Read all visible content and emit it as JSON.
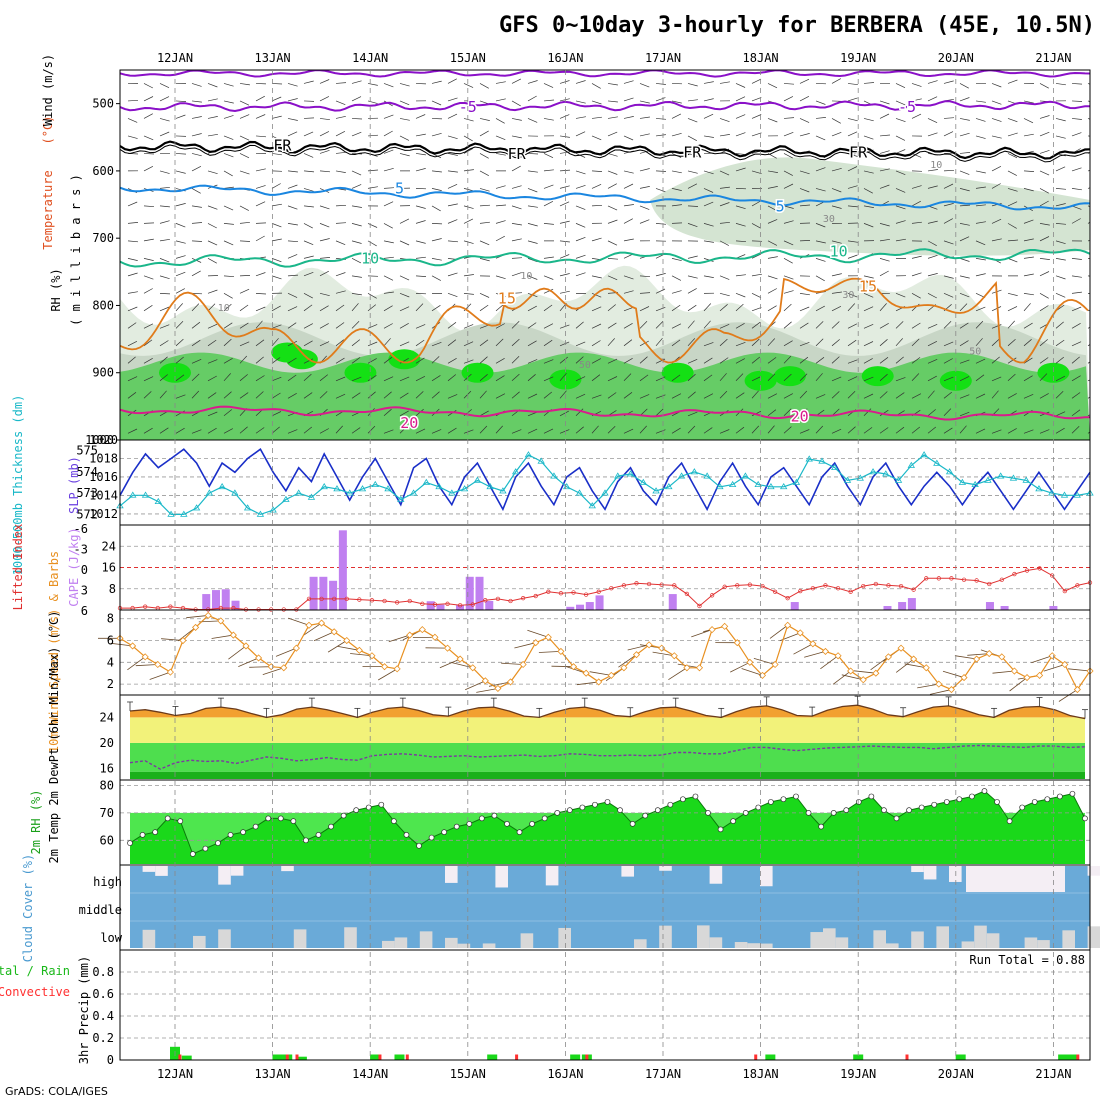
{
  "title": "GFS 0~10day 3-hourly for BERBERA (45E, 10.5N)",
  "footer": "GrADS: COLA/IGES",
  "run_total": "Run Total = 0.88",
  "dates": [
    "12JAN",
    "13JAN",
    "14JAN",
    "15JAN",
    "16JAN",
    "17JAN",
    "18JAN",
    "19JAN",
    "20JAN",
    "21JAN"
  ],
  "colors": {
    "purple": "#8a10c8",
    "black": "#000000",
    "blue": "#1a86e0",
    "teal": "#1ab68a",
    "orange": "#e07b1a",
    "magenta": "#d81c8c",
    "rh_green": "#66cc66",
    "slp": "#1a2fc8",
    "thick": "#1ab8c8",
    "cape": "#c080f0",
    "li": "#e03030",
    "wind": "#e89020",
    "temp_max": "#f2a030",
    "temp_band": "#f2f27a",
    "dew_band": "#3ecc3e",
    "rh2m": "#1ad81a",
    "cloud": "#6aaad8",
    "precip_total": "#1ad81a",
    "precip_conv": "#ff3030"
  },
  "chart_data": [
    {
      "type": "area",
      "panel": "upper-air",
      "ylabel_parts": [
        "RH (%)",
        "Temperature",
        "(°C)",
        "Wind (m/s)"
      ],
      "axis_label": "( m i l l i b a r s )",
      "y_ticks": [
        500,
        600,
        700,
        800,
        900,
        1000
      ],
      "ylim": [
        1000,
        450
      ],
      "isotherm_labels": [
        {
          "label": "-5",
          "day": 3.0,
          "p": 505
        },
        {
          "label": "-5",
          "day": 7.5,
          "p": 505
        },
        {
          "label": "FR",
          "day": 1.1,
          "p": 562
        },
        {
          "label": "FR",
          "day": 3.5,
          "p": 575
        },
        {
          "label": "FR",
          "day": 5.3,
          "p": 573
        },
        {
          "label": "FR",
          "day": 7.0,
          "p": 573
        },
        {
          "label": "5",
          "day": 2.3,
          "p": 626
        },
        {
          "label": "5",
          "day": 6.2,
          "p": 653
        },
        {
          "label": "10",
          "day": 2.0,
          "p": 730
        },
        {
          "label": "10",
          "day": 6.8,
          "p": 720
        },
        {
          "label": "15",
          "day": 3.4,
          "p": 790
        },
        {
          "label": "15",
          "day": 7.1,
          "p": 772
        },
        {
          "label": "20",
          "day": 2.4,
          "p": 975
        },
        {
          "label": "20",
          "day": 6.4,
          "p": 965
        }
      ],
      "rh_labels": [
        {
          "label": "10",
          "day": 0.5,
          "p": 802
        },
        {
          "label": "10",
          "day": 3.6,
          "p": 755
        },
        {
          "label": "10",
          "day": 7.8,
          "p": 590
        },
        {
          "label": "30",
          "day": 6.7,
          "p": 670
        },
        {
          "label": "30",
          "day": 6.9,
          "p": 783
        },
        {
          "label": "50",
          "day": 4.2,
          "p": 887
        },
        {
          "label": "50",
          "day": 8.2,
          "p": 867
        }
      ]
    },
    {
      "type": "line",
      "panel": "thickness-slp",
      "ylabel_left": "1000-500mb Thickness (dm)",
      "ylabel_right": "SLP (mb)",
      "left_ticks": [
        572,
        573,
        574,
        575
      ],
      "right_ticks": [
        1012,
        1014,
        1016,
        1018,
        1020
      ],
      "left_range": [
        571.5,
        575.5
      ],
      "right_range": [
        1010.8,
        1020
      ],
      "series": [
        {
          "name": "SLP",
          "values": [
            1014,
            1016.5,
            1018.5,
            1017,
            1018,
            1019,
            1017.5,
            1015,
            1017.5,
            1016.5,
            1018,
            1019,
            1016.5,
            1014.5,
            1017,
            1015.5,
            1018.5,
            1016,
            1013.5,
            1016,
            1018,
            1015.5,
            1013,
            1017,
            1018,
            1015,
            1013,
            1016,
            1017.5,
            1015,
            1012.5,
            1016,
            1017.5,
            1015,
            1013,
            1016,
            1017,
            1014.5,
            1012.5,
            1015.5,
            1017,
            1014.5,
            1013,
            1016,
            1017.5,
            1015,
            1012.5,
            1015.5,
            1017.5,
            1015,
            1013,
            1016,
            1017,
            1015,
            1013,
            1016,
            1017.5,
            1015,
            1013,
            1016,
            1017.5,
            1015,
            1013,
            1015,
            1016.5,
            1015,
            1013,
            1015,
            1016.5,
            1014.5,
            1012.5,
            1014.5,
            1016.5,
            1014.5,
            1012.5,
            1014.5,
            1016.5
          ]
        },
        {
          "name": "Thickness",
          "values": [
            572.4,
            572.9,
            572.9,
            572.6,
            572.0,
            572.0,
            572.3,
            573.0,
            573.3,
            573.0,
            572.3,
            572.0,
            572.2,
            572.7,
            573.0,
            572.8,
            573.3,
            573.2,
            573.0,
            573.2,
            573.4,
            573.2,
            572.7,
            573.0,
            573.5,
            573.3,
            573.0,
            573.2,
            573.6,
            573.3,
            573.1,
            574.0,
            574.8,
            574.5,
            573.8,
            573.3,
            573.0,
            572.4,
            573.0,
            573.8,
            573.9,
            573.5,
            573.1,
            573.3,
            573.8,
            574.0,
            573.8,
            573.3,
            573.4,
            573.8,
            573.4,
            573.3,
            573.3,
            573.5,
            574.6,
            574.5,
            574.2,
            573.6,
            573.7,
            574.0,
            573.9,
            573.6,
            574.3,
            574.8,
            574.4,
            574.0,
            573.5,
            573.4,
            573.6,
            573.8,
            573.7,
            573.6,
            573.2,
            573.0,
            572.9,
            572.9,
            573.0
          ]
        }
      ]
    },
    {
      "type": "bar",
      "panel": "cape-li",
      "ylabel_left": "Lifted Index",
      "ylabel_right": "CAPE (J/kg)",
      "left_ticks": [
        "-6",
        "-3",
        "0",
        "3",
        "6"
      ],
      "right_ticks": [
        8,
        16,
        24
      ],
      "cape_bars": [
        {
          "day": 0.32,
          "value": 6
        },
        {
          "day": 0.42,
          "value": 7.5
        },
        {
          "day": 0.52,
          "value": 7.8
        },
        {
          "day": 0.62,
          "value": 3.5
        },
        {
          "day": 1.42,
          "value": 12.5
        },
        {
          "day": 1.52,
          "value": 12.5
        },
        {
          "day": 1.62,
          "value": 11
        },
        {
          "day": 1.72,
          "value": 30
        },
        {
          "day": 2.62,
          "value": 3.3
        },
        {
          "day": 2.72,
          "value": 2
        },
        {
          "day": 2.92,
          "value": 1.8
        },
        {
          "day": 3.02,
          "value": 12.5
        },
        {
          "day": 3.12,
          "value": 12.5
        },
        {
          "day": 3.22,
          "value": 3.4
        },
        {
          "day": 4.05,
          "value": 1.2
        },
        {
          "day": 4.15,
          "value": 2
        },
        {
          "day": 4.25,
          "value": 3
        },
        {
          "day": 4.35,
          "value": 5.5
        },
        {
          "day": 5.1,
          "value": 6
        },
        {
          "day": 6.35,
          "value": 3
        },
        {
          "day": 7.3,
          "value": 1.5
        },
        {
          "day": 7.45,
          "value": 3
        },
        {
          "day": 7.55,
          "value": 4.5
        },
        {
          "day": 8.35,
          "value": 3
        },
        {
          "day": 8.5,
          "value": 1.5
        },
        {
          "day": 9.0,
          "value": 1.5
        }
      ],
      "li_values": [
        5.8,
        5.8,
        5.6,
        5.8,
        5.6,
        5.8,
        6.0,
        6.0,
        5.8,
        5.8,
        6.0,
        6.0,
        6.0,
        6.0,
        6.0,
        4.5,
        4.5,
        4.5,
        4.5,
        4.6,
        4.7,
        4.8,
        5.0,
        4.8,
        5.2,
        5.3,
        5.2,
        5.4,
        5.3,
        4.7,
        4.5,
        4.8,
        4.4,
        4.1,
        3.5,
        3.7,
        3.6,
        3.9,
        3.5,
        3.0,
        2.6,
        2.3,
        2.4,
        2.5,
        2.6,
        3.8,
        5.5,
        4.0,
        2.8,
        2.6,
        2.5,
        2.7,
        3.5,
        4.4,
        3.4,
        3.0,
        2.6,
        3.0,
        3.5,
        2.7,
        2.4,
        2.6,
        2.7,
        3.2,
        1.6,
        1.6,
        1.6,
        1.8,
        1.9,
        2.4,
        1.8,
        1.0,
        0.5,
        0.2,
        1.2,
        3.4,
        2.6,
        2.2
      ]
    },
    {
      "type": "line",
      "panel": "wind10m",
      "ylabel": "10m Wind Speed (m/s) & Barbs",
      "y_ticks": [
        2,
        4,
        6,
        8
      ],
      "ylim": [
        1,
        8.8
      ],
      "values": [
        6.2,
        5.5,
        4.5,
        3.8,
        3.1,
        6.0,
        7.2,
        8.3,
        7.8,
        6.5,
        5.5,
        4.4,
        3.6,
        3.5,
        5.3,
        7.4,
        7.6,
        6.8,
        6.0,
        5.1,
        4.6,
        3.6,
        3.4,
        6.5,
        7.0,
        6.3,
        5.3,
        4.3,
        3.5,
        2.3,
        1.6,
        2.2,
        3.8,
        5.8,
        6.3,
        5.0,
        3.6,
        3.0,
        2.2,
        2.8,
        3.5,
        4.7,
        5.6,
        5.3,
        4.6,
        3.5,
        3.5,
        7.0,
        7.3,
        5.8,
        4.0,
        2.8,
        3.8,
        7.4,
        6.7,
        5.7,
        5.0,
        4.6,
        3.2,
        2.4,
        3.0,
        4.5,
        5.3,
        4.3,
        3.5,
        2.0,
        1.5,
        2.6,
        4.3,
        4.8,
        4.5,
        3.2,
        2.6,
        2.8,
        4.6,
        3.8,
        1.5,
        3.2
      ]
    },
    {
      "type": "area",
      "panel": "temp2m",
      "ylabel": "2m Temp 2m DewPt (6hr Min/Max) (°C)",
      "y_ticks": [
        16,
        20,
        24
      ],
      "ylim": [
        14.2,
        27.5
      ],
      "temp_max": [
        25.0,
        25.2,
        24.8,
        24.3,
        24.6,
        25.4,
        25.6,
        25.3,
        24.6,
        24.0,
        24.4,
        25.3,
        25.6,
        25.2,
        24.6,
        24.0,
        24.8,
        25.4,
        25.6,
        25.1,
        24.4,
        24.2,
        25.0,
        25.5,
        25.6,
        25.0,
        24.2,
        24.0,
        24.8,
        25.4,
        25.6,
        25.1,
        24.3,
        24.1,
        24.9,
        25.5,
        25.6,
        25.0,
        24.3,
        24.0,
        24.9,
        25.6,
        25.8,
        25.2,
        24.3,
        24.2,
        25.1,
        25.7,
        25.9,
        25.3,
        24.4,
        24.1,
        24.9,
        25.6,
        25.8,
        25.2,
        24.4,
        24.0,
        25.1,
        25.6,
        25.7,
        25.2,
        24.3,
        23.8
      ],
      "dewpoint": [
        16.9,
        17.2,
        15.9,
        16.9,
        17.3,
        17.1,
        17.2,
        16.8,
        17.3,
        17.8,
        17.6,
        17.2,
        17.4,
        17.7,
        17.4,
        17.3,
        18.0,
        18.2,
        18.3,
        18.1,
        17.8,
        17.9,
        18.0,
        17.8,
        17.9,
        18.0,
        18.1,
        17.9,
        18.0,
        18.3,
        18.2,
        18.0,
        18.0,
        18.1,
        18.0,
        18.1,
        18.5,
        18.5,
        18.3,
        18.3,
        18.8,
        19.3,
        19.3,
        19.0,
        18.8,
        19.0,
        19.2,
        19.3,
        19.4,
        19.5,
        19.4,
        19.3,
        19.3,
        19.1,
        19.3,
        19.5,
        19.6,
        19.5,
        19.4,
        19.3,
        19.5,
        19.5,
        19.3,
        19.4
      ]
    },
    {
      "type": "area",
      "panel": "rh2m",
      "ylabel": "2m RH (%)",
      "y_ticks": [
        60,
        70,
        80
      ],
      "ylim": [
        51,
        82
      ],
      "values": [
        59,
        62,
        63,
        68,
        67,
        55,
        57,
        59,
        62,
        63,
        65,
        68,
        68,
        67,
        60,
        62,
        65,
        69,
        71,
        72,
        73,
        67,
        62,
        58,
        61,
        63,
        65,
        66,
        68,
        69,
        66,
        63,
        66,
        68,
        70,
        71,
        72,
        73,
        74,
        71,
        66,
        69,
        71,
        73,
        75,
        76,
        70,
        64,
        67,
        70,
        72,
        74,
        75,
        76,
        70,
        65,
        70,
        71,
        74,
        76,
        71,
        68,
        71,
        72,
        73,
        74,
        75,
        76,
        78,
        74,
        67,
        72,
        74,
        75,
        76,
        77,
        68
      ]
    },
    {
      "type": "bar",
      "panel": "cloud",
      "ylabel": "Cloud Cover (%)",
      "row_labels": [
        "high",
        "middle",
        "low"
      ]
    },
    {
      "type": "bar",
      "panel": "precip",
      "ylabel_left": "Total / Rain",
      "ylabel_conv": "Convective",
      "ylabel": "3hr Precip (mm)",
      "y_ticks": [
        "0",
        "0.2",
        "0.4",
        "0.6",
        "0.8"
      ],
      "ylim": [
        0,
        1.0
      ],
      "total_bars": [
        {
          "day": 0.0,
          "value": 0.12
        },
        {
          "day": 0.12,
          "value": 0.04
        },
        {
          "day": 1.05,
          "value": 0.05
        },
        {
          "day": 1.15,
          "value": 0.05
        },
        {
          "day": 1.3,
          "value": 0.03
        },
        {
          "day": 2.05,
          "value": 0.05
        },
        {
          "day": 2.3,
          "value": 0.05
        },
        {
          "day": 3.25,
          "value": 0.05
        },
        {
          "day": 4.1,
          "value": 0.05
        },
        {
          "day": 4.22,
          "value": 0.05
        },
        {
          "day": 6.1,
          "value": 0.05
        },
        {
          "day": 7.0,
          "value": 0.05
        },
        {
          "day": 8.05,
          "value": 0.05
        },
        {
          "day": 9.1,
          "value": 0.05
        },
        {
          "day": 9.2,
          "value": 0.05
        }
      ],
      "conv_bars": [
        {
          "day": 0.05,
          "value": 0.05
        },
        {
          "day": 1.15,
          "value": 0.05
        },
        {
          "day": 1.25,
          "value": 0.05
        },
        {
          "day": 2.1,
          "value": 0.05
        },
        {
          "day": 2.38,
          "value": 0.05
        },
        {
          "day": 3.5,
          "value": 0.05
        },
        {
          "day": 4.22,
          "value": 0.05
        },
        {
          "day": 5.95,
          "value": 0.05
        },
        {
          "day": 7.5,
          "value": 0.05
        },
        {
          "day": 9.25,
          "value": 0.05
        }
      ]
    }
  ]
}
